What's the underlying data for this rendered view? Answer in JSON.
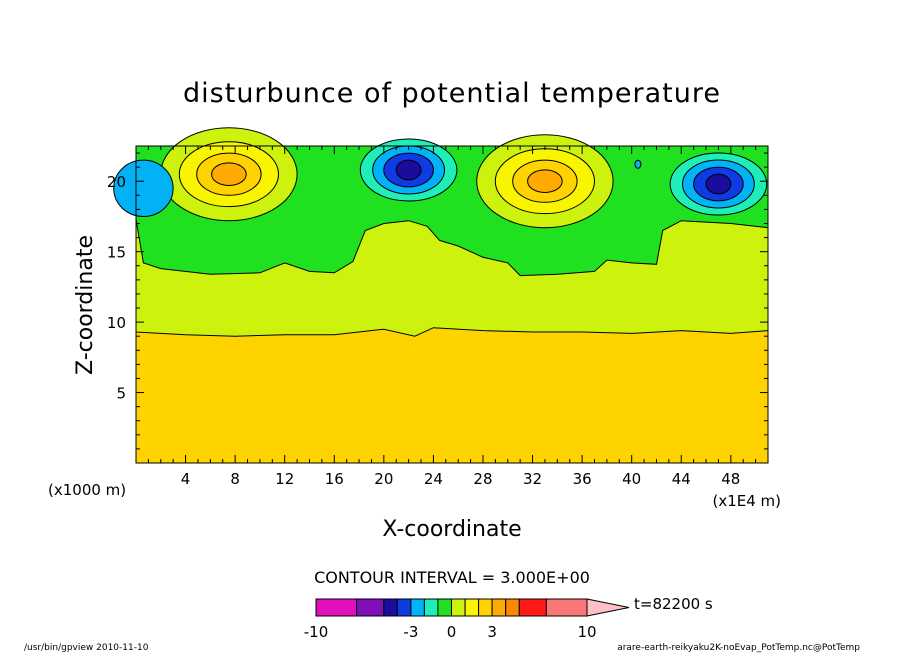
{
  "chart_data": {
    "type": "heatmap",
    "title": "disturbunce of potential temperature",
    "xlabel": "X-coordinate",
    "ylabel": "Z-coordinate",
    "x_unit_label": "(x1E4 m)",
    "y_unit_label": "(x1000 m)",
    "x_ticks": [
      4,
      8,
      12,
      16,
      20,
      24,
      28,
      32,
      36,
      40,
      44,
      48
    ],
    "y_ticks": [
      5,
      10,
      15,
      20
    ],
    "xlim": [
      0,
      51
    ],
    "ylim": [
      0,
      22.5
    ],
    "contour_interval_label": "CONTOUR INTERVAL = 3.000E+00",
    "time_label": "t=82200 s",
    "colorbar": {
      "tick_labels": [
        "-10",
        "-3",
        "0",
        "3",
        "10"
      ],
      "tick_values": [
        -10,
        -3,
        0,
        3,
        10
      ],
      "levels": [
        -10,
        -7,
        -5,
        -4,
        -3,
        -2,
        -1,
        0,
        1,
        2,
        3,
        4,
        5,
        7,
        10
      ],
      "colors": [
        "#e10fbe",
        "#7d10b9",
        "#1b0c9c",
        "#0e3be3",
        "#02b2f6",
        "#1eeeb8",
        "#1fe11f",
        "#ccf20d",
        "#f9f500",
        "#ffd300",
        "#ffaa00",
        "#ff8800",
        "#ff1a1a",
        "#fa7777"
      ],
      "extend_color": "#ffc0c5"
    },
    "fields": {
      "warm_layer_z_top": 9.3,
      "neutral_layer_z_top": 14.0,
      "anomalies": [
        {
          "x": 7.5,
          "z": 20.5,
          "peak": 5,
          "sign": "warm"
        },
        {
          "x": 22,
          "z": 20.8,
          "peak": -5,
          "sign": "cool"
        },
        {
          "x": 33,
          "z": 20,
          "peak": 5,
          "sign": "warm"
        },
        {
          "x": 47,
          "z": 19.8,
          "peak": -5,
          "sign": "cool"
        }
      ]
    },
    "grid": false,
    "legend": "bottom-center"
  },
  "footer": {
    "left": "/usr/bin/gpview  2010-11-10",
    "right": "arare-earth-reikyaku2K-noEvap_PotTemp.nc@PotTemp"
  }
}
